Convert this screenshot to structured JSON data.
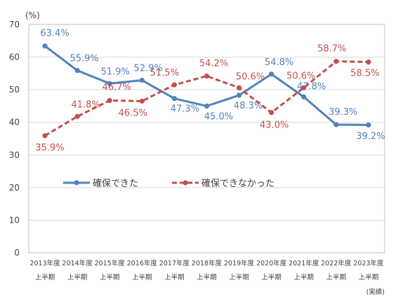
{
  "chart_data": {
    "type": "line",
    "title": "",
    "xlabel": "",
    "ylabel": "(%)",
    "ylim": [
      0,
      70
    ],
    "yticks": [
      0,
      10,
      20,
      30,
      40,
      50,
      60,
      70
    ],
    "grid": true,
    "legend_position": "left-middle",
    "note": "(実績)",
    "categories": [
      {
        "year": "2013年度",
        "period": "上半期"
      },
      {
        "year": "2014年度",
        "period": "上半期"
      },
      {
        "year": "2015年度",
        "period": "上半期"
      },
      {
        "year": "2016年度",
        "period": "上半期"
      },
      {
        "year": "2017年度",
        "period": "上半期"
      },
      {
        "year": "2018年度",
        "period": "上半期"
      },
      {
        "year": "2019年度",
        "period": "上半期"
      },
      {
        "year": "2020年度",
        "period": "上半期"
      },
      {
        "year": "2021年度",
        "period": "上半期"
      },
      {
        "year": "2022年度",
        "period": "上半期"
      },
      {
        "year": "2023年度",
        "period": "上半期"
      }
    ],
    "series": [
      {
        "name": "確保できた",
        "color": "#4F81BD",
        "style": "solid",
        "values": [
          63.4,
          55.9,
          51.9,
          52.9,
          47.3,
          45.0,
          48.3,
          54.8,
          47.8,
          39.3,
          39.2
        ],
        "labels": [
          "63.4%",
          "55.9%",
          "51.9%",
          "52.9%",
          "47.3%",
          "45.0%",
          "48.3%",
          "54.8%",
          "47.8%",
          "39.3%",
          "39.2%"
        ]
      },
      {
        "name": "確保できなかった",
        "color": "#C0504D",
        "style": "dashed",
        "values": [
          35.9,
          41.8,
          46.7,
          46.5,
          51.5,
          54.2,
          50.6,
          43.0,
          50.6,
          58.7,
          58.5
        ],
        "labels": [
          "35.9%",
          "41.8%",
          "46.7%",
          "46.5%",
          "51.5%",
          "54.2%",
          "50.6%",
          "43.0%",
          "50.6%",
          "58.7%",
          "58.5%"
        ]
      }
    ]
  }
}
